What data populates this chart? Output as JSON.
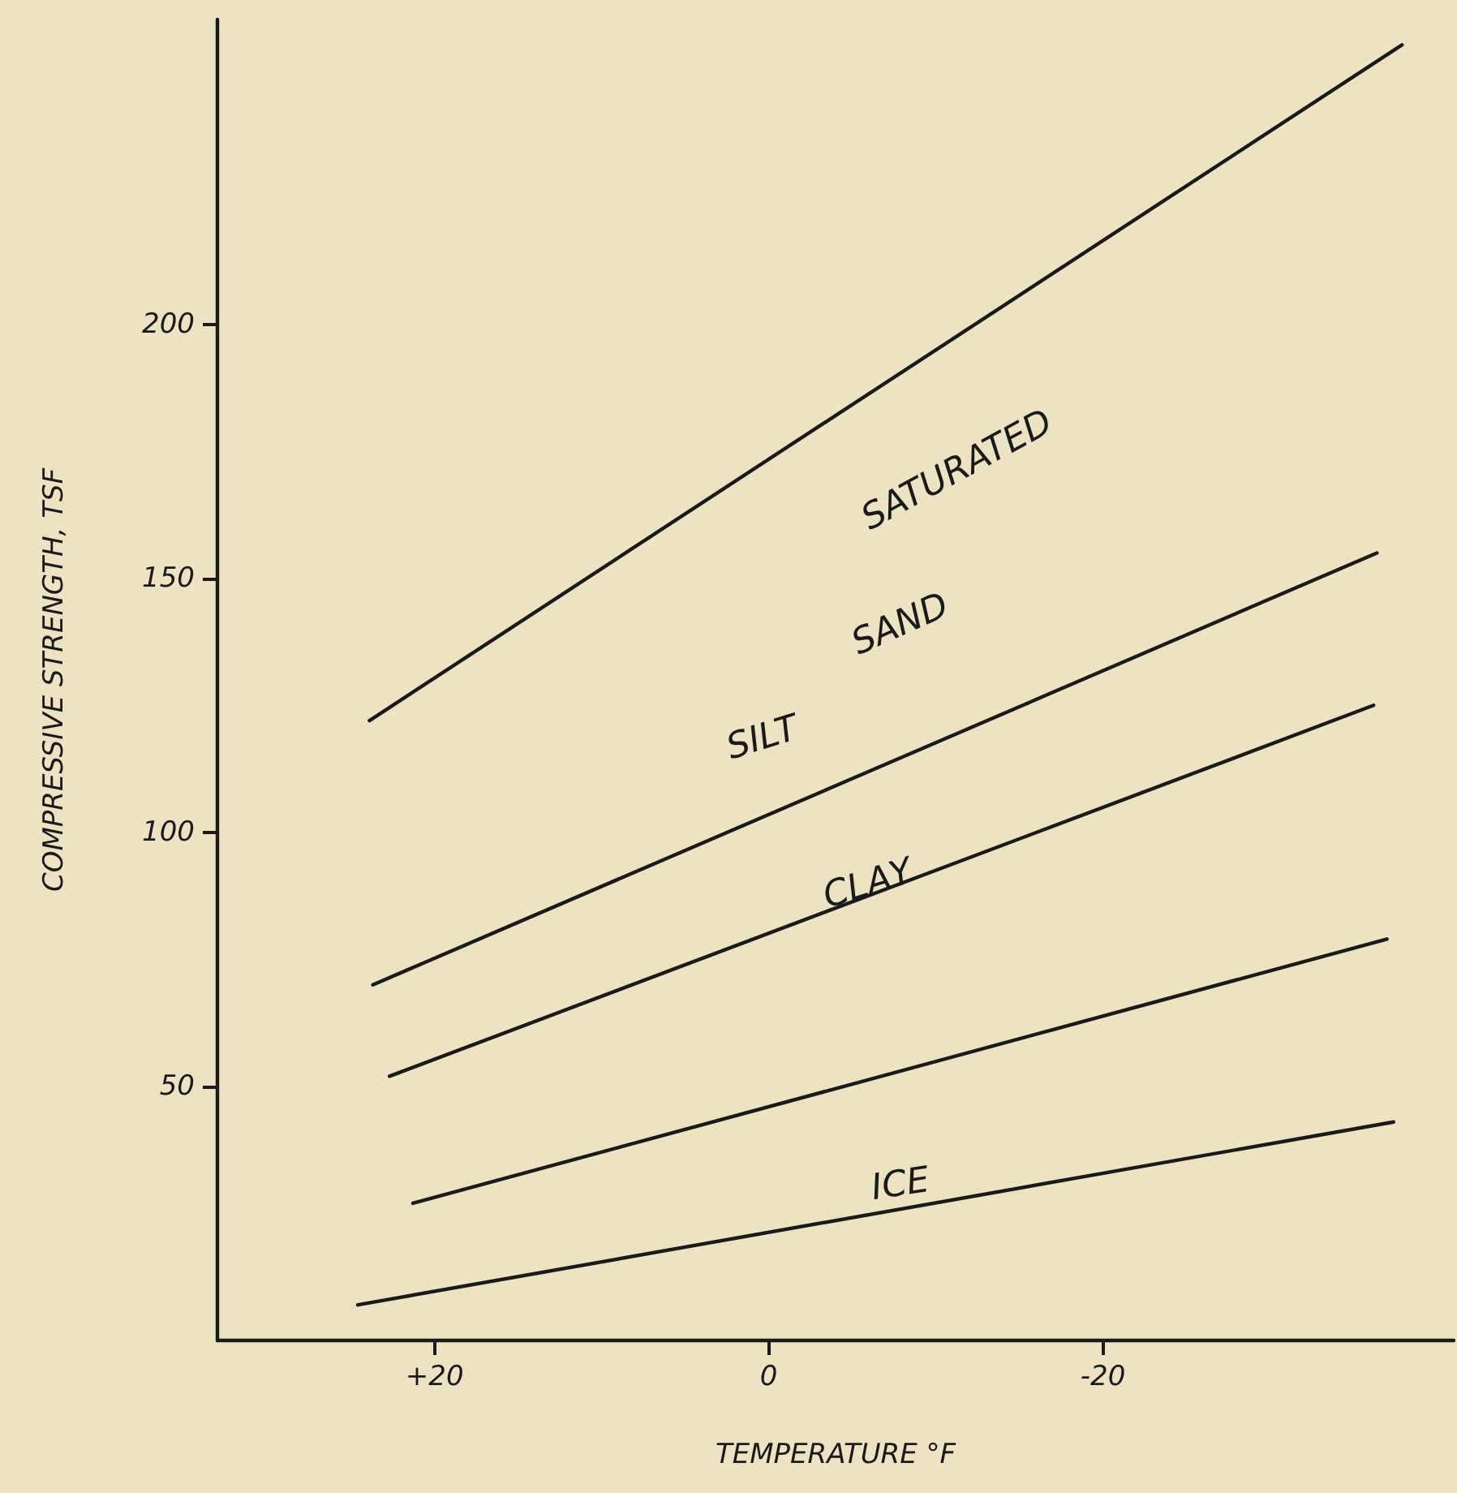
{
  "chart_data": {
    "type": "line",
    "xlabel": "TEMPERATURE °F",
    "ylabel": "COMPRESSIVE STRENGTH, TSF",
    "xlim": [
      33,
      -41
    ],
    "xticks": [
      {
        "value": 20,
        "label": "+20"
      },
      0,
      -20
    ],
    "ylim": [
      0,
      260
    ],
    "yticks": [
      50,
      100,
      150,
      200
    ],
    "grid": false,
    "marker": "none",
    "line_style": "solid",
    "series": [
      {
        "color": "#1a1a1a",
        "x": [
          23.9,
          -37.9
        ],
        "values": [
          122,
          255
        ]
      },
      {
        "color": "#1a1a1a",
        "x": [
          23.7,
          -36.4
        ],
        "values": [
          70,
          155
        ]
      },
      {
        "color": "#1a1a1a",
        "x": [
          22.7,
          -36.2
        ],
        "values": [
          52,
          125
        ]
      },
      {
        "color": "#1a1a1a",
        "x": [
          21.3,
          -37
        ],
        "values": [
          27,
          79
        ]
      },
      {
        "color": "#1a1a1a",
        "x": [
          24.6,
          -37.4
        ],
        "values": [
          7,
          43
        ]
      }
    ],
    "annotations": [
      "SATURATED",
      "SAND",
      "SILT",
      "CLAY",
      "ICE"
    ]
  }
}
